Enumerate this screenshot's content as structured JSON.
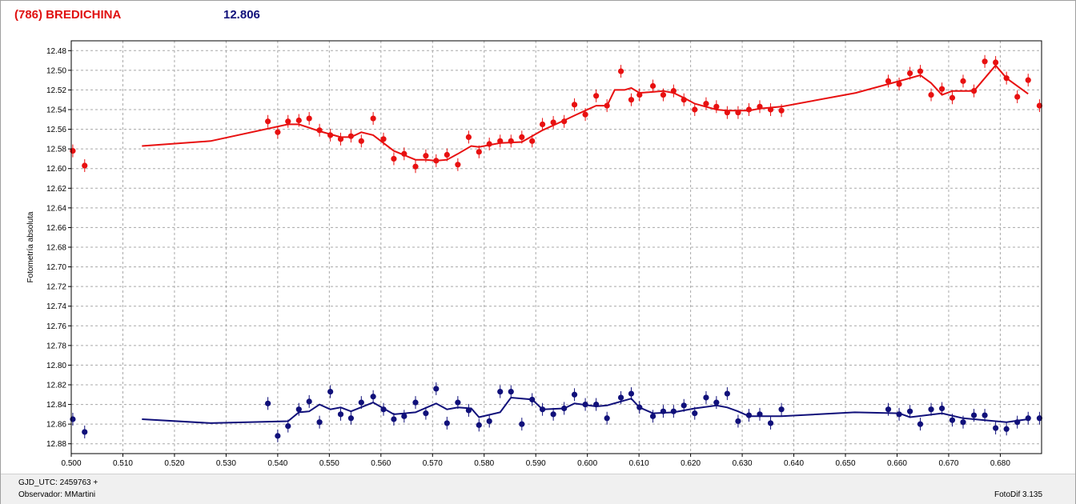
{
  "title": {
    "object": "(786) BREDICHINA",
    "magnitude": "12.806"
  },
  "footer": {
    "gjd": "GJD_UTC: 2459763 +",
    "observer": "Observador: MMartini",
    "software": "FotoDif 3.135"
  },
  "colors": {
    "series_red": "#e81010",
    "series_blue": "#10107a",
    "title_red": "#e01010",
    "title_blue": "#10107a",
    "grid": "#a8a8a8"
  },
  "chart_data": {
    "type": "scatter",
    "ylabel": "Fotometría absoluta",
    "xlabel": "",
    "xlim": [
      0.5,
      0.688
    ],
    "ylim": [
      12.89,
      12.47
    ],
    "y_inverted": true,
    "grid": true,
    "xticks": [
      "0.500",
      "0.510",
      "0.520",
      "0.530",
      "0.540",
      "0.550",
      "0.560",
      "0.570",
      "0.580",
      "0.590",
      "0.600",
      "0.610",
      "0.620",
      "0.630",
      "0.640",
      "0.650",
      "0.660",
      "0.670",
      "0.680"
    ],
    "yticks": [
      "12.48",
      "12.50",
      "12.52",
      "12.54",
      "12.56",
      "12.58",
      "12.60",
      "12.62",
      "12.64",
      "12.66",
      "12.68",
      "12.70",
      "12.72",
      "12.74",
      "12.76",
      "12.78",
      "12.80",
      "12.82",
      "12.84",
      "12.86",
      "12.88"
    ],
    "series": [
      {
        "color": "#e81010",
        "points": [
          [
            0.5003,
            12.582
          ],
          [
            0.5026,
            12.597
          ],
          [
            0.5381,
            12.552
          ],
          [
            0.54,
            12.563
          ],
          [
            0.542,
            12.552
          ],
          [
            0.5441,
            12.551
          ],
          [
            0.5461,
            12.549
          ],
          [
            0.5481,
            12.561
          ],
          [
            0.5502,
            12.566
          ],
          [
            0.5522,
            12.57
          ],
          [
            0.5542,
            12.567
          ],
          [
            0.5562,
            12.572
          ],
          [
            0.5585,
            12.549
          ],
          [
            0.5605,
            12.57
          ],
          [
            0.5625,
            12.59
          ],
          [
            0.5645,
            12.585
          ],
          [
            0.5667,
            12.598
          ],
          [
            0.5687,
            12.587
          ],
          [
            0.5707,
            12.592
          ],
          [
            0.5728,
            12.586
          ],
          [
            0.5749,
            12.596
          ],
          [
            0.577,
            12.568
          ],
          [
            0.579,
            12.583
          ],
          [
            0.581,
            12.575
          ],
          [
            0.5831,
            12.572
          ],
          [
            0.5852,
            12.572
          ],
          [
            0.5873,
            12.568
          ],
          [
            0.5893,
            12.572
          ],
          [
            0.5913,
            12.555
          ],
          [
            0.5934,
            12.553
          ],
          [
            0.5955,
            12.552
          ],
          [
            0.5975,
            12.535
          ],
          [
            0.5996,
            12.545
          ],
          [
            0.6017,
            12.526
          ],
          [
            0.6038,
            12.536
          ],
          [
            0.6065,
            12.501
          ],
          [
            0.6085,
            12.53
          ],
          [
            0.6101,
            12.525
          ],
          [
            0.6127,
            12.516
          ],
          [
            0.6147,
            12.525
          ],
          [
            0.6167,
            12.521
          ],
          [
            0.6187,
            12.53
          ],
          [
            0.6208,
            12.54
          ],
          [
            0.623,
            12.534
          ],
          [
            0.625,
            12.537
          ],
          [
            0.6271,
            12.543
          ],
          [
            0.6292,
            12.543
          ],
          [
            0.6313,
            12.54
          ],
          [
            0.6334,
            12.537
          ],
          [
            0.6355,
            12.54
          ],
          [
            0.6376,
            12.541
          ],
          [
            0.6583,
            12.511
          ],
          [
            0.6604,
            12.514
          ],
          [
            0.6625,
            12.503
          ],
          [
            0.6645,
            12.501
          ],
          [
            0.6666,
            12.525
          ],
          [
            0.6687,
            12.519
          ],
          [
            0.6707,
            12.528
          ],
          [
            0.6728,
            12.511
          ],
          [
            0.6749,
            12.521
          ],
          [
            0.677,
            12.491
          ],
          [
            0.6791,
            12.492
          ],
          [
            0.6812,
            12.508
          ],
          [
            0.6833,
            12.527
          ],
          [
            0.6854,
            12.51
          ],
          [
            0.6876,
            12.536
          ]
        ],
        "line": [
          [
            0.5137,
            12.577
          ],
          [
            0.527,
            12.572
          ],
          [
            0.542,
            12.555
          ],
          [
            0.5441,
            12.555
          ],
          [
            0.5481,
            12.562
          ],
          [
            0.5522,
            12.568
          ],
          [
            0.5542,
            12.568
          ],
          [
            0.5562,
            12.563
          ],
          [
            0.5585,
            12.566
          ],
          [
            0.5625,
            12.582
          ],
          [
            0.5667,
            12.591
          ],
          [
            0.5687,
            12.591
          ],
          [
            0.5707,
            12.592
          ],
          [
            0.5728,
            12.591
          ],
          [
            0.5749,
            12.585
          ],
          [
            0.5775,
            12.577
          ],
          [
            0.579,
            12.578
          ],
          [
            0.5831,
            12.574
          ],
          [
            0.5873,
            12.573
          ],
          [
            0.5913,
            12.561
          ],
          [
            0.5955,
            12.551
          ],
          [
            0.5975,
            12.546
          ],
          [
            0.5996,
            12.541
          ],
          [
            0.6017,
            12.536
          ],
          [
            0.6038,
            12.536
          ],
          [
            0.6053,
            12.52
          ],
          [
            0.6072,
            12.52
          ],
          [
            0.6085,
            12.518
          ],
          [
            0.6101,
            12.523
          ],
          [
            0.6127,
            12.522
          ],
          [
            0.6147,
            12.521
          ],
          [
            0.6167,
            12.523
          ],
          [
            0.6187,
            12.528
          ],
          [
            0.6208,
            12.534
          ],
          [
            0.625,
            12.54
          ],
          [
            0.6271,
            12.541
          ],
          [
            0.6313,
            12.541
          ],
          [
            0.6334,
            12.539
          ],
          [
            0.6376,
            12.537
          ],
          [
            0.652,
            12.523
          ],
          [
            0.6604,
            12.511
          ],
          [
            0.6645,
            12.505
          ],
          [
            0.6666,
            12.513
          ],
          [
            0.6687,
            12.525
          ],
          [
            0.6707,
            12.521
          ],
          [
            0.6749,
            12.521
          ],
          [
            0.6791,
            12.495
          ],
          [
            0.6812,
            12.508
          ],
          [
            0.6854,
            12.524
          ]
        ]
      },
      {
        "color": "#10107a",
        "points": [
          [
            0.5003,
            12.855
          ],
          [
            0.5026,
            12.868
          ],
          [
            0.5381,
            12.839
          ],
          [
            0.54,
            12.872
          ],
          [
            0.542,
            12.862
          ],
          [
            0.5441,
            12.845
          ],
          [
            0.5461,
            12.837
          ],
          [
            0.5481,
            12.858
          ],
          [
            0.5502,
            12.827
          ],
          [
            0.5522,
            12.85
          ],
          [
            0.5542,
            12.854
          ],
          [
            0.5562,
            12.838
          ],
          [
            0.5585,
            12.832
          ],
          [
            0.5605,
            12.845
          ],
          [
            0.5625,
            12.855
          ],
          [
            0.5645,
            12.852
          ],
          [
            0.5667,
            12.838
          ],
          [
            0.5687,
            12.849
          ],
          [
            0.5707,
            12.824
          ],
          [
            0.5728,
            12.859
          ],
          [
            0.5749,
            12.838
          ],
          [
            0.577,
            12.846
          ],
          [
            0.579,
            12.861
          ],
          [
            0.581,
            12.857
          ],
          [
            0.5831,
            12.827
          ],
          [
            0.5852,
            12.827
          ],
          [
            0.5873,
            12.86
          ],
          [
            0.5893,
            12.835
          ],
          [
            0.5913,
            12.845
          ],
          [
            0.5934,
            12.85
          ],
          [
            0.5955,
            12.844
          ],
          [
            0.5975,
            12.83
          ],
          [
            0.5996,
            12.84
          ],
          [
            0.6017,
            12.84
          ],
          [
            0.6038,
            12.854
          ],
          [
            0.6065,
            12.833
          ],
          [
            0.6085,
            12.829
          ],
          [
            0.6101,
            12.843
          ],
          [
            0.6127,
            12.852
          ],
          [
            0.6147,
            12.847
          ],
          [
            0.6167,
            12.847
          ],
          [
            0.6187,
            12.841
          ],
          [
            0.6208,
            12.849
          ],
          [
            0.623,
            12.833
          ],
          [
            0.625,
            12.838
          ],
          [
            0.6271,
            12.829
          ],
          [
            0.6292,
            12.857
          ],
          [
            0.6313,
            12.851
          ],
          [
            0.6334,
            12.85
          ],
          [
            0.6355,
            12.859
          ],
          [
            0.6376,
            12.845
          ],
          [
            0.6583,
            12.845
          ],
          [
            0.6604,
            12.85
          ],
          [
            0.6625,
            12.847
          ],
          [
            0.6645,
            12.86
          ],
          [
            0.6666,
            12.845
          ],
          [
            0.6687,
            12.844
          ],
          [
            0.6707,
            12.856
          ],
          [
            0.6728,
            12.858
          ],
          [
            0.6749,
            12.851
          ],
          [
            0.677,
            12.851
          ],
          [
            0.6791,
            12.864
          ],
          [
            0.6812,
            12.865
          ],
          [
            0.6833,
            12.858
          ],
          [
            0.6854,
            12.854
          ],
          [
            0.6876,
            12.854
          ]
        ],
        "line": [
          [
            0.5137,
            12.855
          ],
          [
            0.527,
            12.859
          ],
          [
            0.542,
            12.857
          ],
          [
            0.5441,
            12.848
          ],
          [
            0.5461,
            12.847
          ],
          [
            0.5481,
            12.84
          ],
          [
            0.5502,
            12.845
          ],
          [
            0.5522,
            12.843
          ],
          [
            0.5542,
            12.847
          ],
          [
            0.5585,
            12.838
          ],
          [
            0.5625,
            12.85
          ],
          [
            0.5667,
            12.848
          ],
          [
            0.5707,
            12.839
          ],
          [
            0.5728,
            12.845
          ],
          [
            0.5749,
            12.843
          ],
          [
            0.5775,
            12.844
          ],
          [
            0.579,
            12.853
          ],
          [
            0.5831,
            12.848
          ],
          [
            0.5852,
            12.833
          ],
          [
            0.5893,
            12.835
          ],
          [
            0.5913,
            12.845
          ],
          [
            0.5955,
            12.844
          ],
          [
            0.5975,
            12.839
          ],
          [
            0.6017,
            12.842
          ],
          [
            0.6038,
            12.841
          ],
          [
            0.6085,
            12.834
          ],
          [
            0.6101,
            12.843
          ],
          [
            0.6127,
            12.849
          ],
          [
            0.6167,
            12.848
          ],
          [
            0.6208,
            12.844
          ],
          [
            0.625,
            12.841
          ],
          [
            0.6271,
            12.843
          ],
          [
            0.6292,
            12.847
          ],
          [
            0.6313,
            12.852
          ],
          [
            0.6376,
            12.852
          ],
          [
            0.6518,
            12.848
          ],
          [
            0.6604,
            12.849
          ],
          [
            0.6625,
            12.853
          ],
          [
            0.6687,
            12.849
          ],
          [
            0.6728,
            12.854
          ],
          [
            0.677,
            12.856
          ],
          [
            0.6812,
            12.858
          ],
          [
            0.6854,
            12.855
          ]
        ]
      }
    ]
  }
}
